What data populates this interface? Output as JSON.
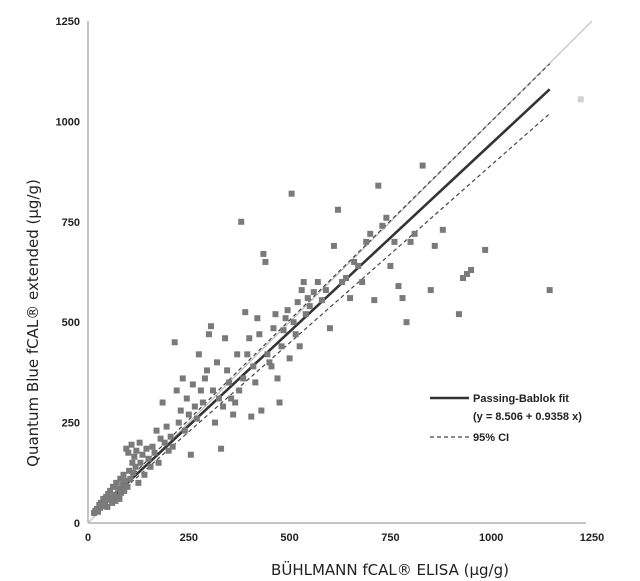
{
  "chart_data": {
    "type": "scatter",
    "xlabel": "BÜHLMANN fCAL® ELISA (μg/g)",
    "ylabel": "Quantum Blue fCAL® extended (μg/g)",
    "xlim": [
      0,
      1250
    ],
    "ylim": [
      0,
      1250
    ],
    "xticks": [
      "0",
      "250",
      "500",
      "750",
      "1000",
      "1250"
    ],
    "yticks": [
      "0",
      "250",
      "500",
      "750",
      "1000",
      "1250"
    ],
    "grid": false,
    "legend_position": "right",
    "colors": {
      "points": "#7a7a7a",
      "fit": "#333333",
      "ci": "#444444",
      "identity": "#bdbdbd",
      "outlier": "#d0d0d0"
    },
    "fit": {
      "label": "Passing-Bablok fit",
      "equation": "(y = 8.506 + 0.9358 x)",
      "intercept": 8.506,
      "slope": 0.9358,
      "x_range": [
        15,
        1145
      ]
    },
    "ci": {
      "label": "95% CI",
      "upper": {
        "intercept": 10,
        "slope": 0.99
      },
      "lower": {
        "intercept": 6,
        "slope": 0.885
      }
    },
    "identity_line": {
      "x_range": [
        0,
        1250
      ]
    },
    "outlier": [
      1222,
      1055
    ],
    "points": [
      [
        15,
        25
      ],
      [
        18,
        30
      ],
      [
        22,
        35
      ],
      [
        25,
        28
      ],
      [
        28,
        45
      ],
      [
        30,
        38
      ],
      [
        32,
        50
      ],
      [
        35,
        42
      ],
      [
        38,
        60
      ],
      [
        40,
        55
      ],
      [
        42,
        48
      ],
      [
        45,
        65
      ],
      [
        48,
        40
      ],
      [
        50,
        72
      ],
      [
        52,
        58
      ],
      [
        55,
        80
      ],
      [
        58,
        62
      ],
      [
        60,
        50
      ],
      [
        62,
        90
      ],
      [
        65,
        70
      ],
      [
        68,
        55
      ],
      [
        70,
        100
      ],
      [
        72,
        65
      ],
      [
        75,
        85
      ],
      [
        78,
        60
      ],
      [
        80,
        110
      ],
      [
        82,
        75
      ],
      [
        85,
        95
      ],
      [
        88,
        120
      ],
      [
        90,
        80
      ],
      [
        92,
        105
      ],
      [
        95,
        185
      ],
      [
        98,
        90
      ],
      [
        100,
        175
      ],
      [
        102,
        130
      ],
      [
        105,
        110
      ],
      [
        108,
        195
      ],
      [
        110,
        150
      ],
      [
        112,
        125
      ],
      [
        115,
        165
      ],
      [
        118,
        140
      ],
      [
        120,
        180
      ],
      [
        125,
        100
      ],
      [
        128,
        200
      ],
      [
        130,
        150
      ],
      [
        135,
        170
      ],
      [
        140,
        120
      ],
      [
        145,
        185
      ],
      [
        150,
        160
      ],
      [
        155,
        140
      ],
      [
        160,
        190
      ],
      [
        165,
        175
      ],
      [
        170,
        230
      ],
      [
        175,
        150
      ],
      [
        180,
        210
      ],
      [
        185,
        300
      ],
      [
        190,
        200
      ],
      [
        195,
        240
      ],
      [
        200,
        180
      ],
      [
        205,
        215
      ],
      [
        210,
        190
      ],
      [
        215,
        450
      ],
      [
        220,
        330
      ],
      [
        225,
        250
      ],
      [
        230,
        280
      ],
      [
        235,
        360
      ],
      [
        240,
        230
      ],
      [
        245,
        310
      ],
      [
        250,
        270
      ],
      [
        255,
        170
      ],
      [
        260,
        345
      ],
      [
        265,
        290
      ],
      [
        270,
        260
      ],
      [
        275,
        420
      ],
      [
        280,
        330
      ],
      [
        285,
        300
      ],
      [
        290,
        360
      ],
      [
        295,
        380
      ],
      [
        300,
        470
      ],
      [
        305,
        490
      ],
      [
        310,
        330
      ],
      [
        315,
        250
      ],
      [
        320,
        400
      ],
      [
        325,
        310
      ],
      [
        330,
        185
      ],
      [
        335,
        290
      ],
      [
        340,
        460
      ],
      [
        345,
        380
      ],
      [
        350,
        350
      ],
      [
        355,
        310
      ],
      [
        360,
        270
      ],
      [
        365,
        300
      ],
      [
        370,
        420
      ],
      [
        375,
        330
      ],
      [
        380,
        750
      ],
      [
        385,
        360
      ],
      [
        390,
        525
      ],
      [
        395,
        420
      ],
      [
        400,
        460
      ],
      [
        405,
        265
      ],
      [
        410,
        390
      ],
      [
        415,
        350
      ],
      [
        420,
        510
      ],
      [
        425,
        470
      ],
      [
        430,
        280
      ],
      [
        435,
        670
      ],
      [
        440,
        650
      ],
      [
        445,
        420
      ],
      [
        450,
        400
      ],
      [
        455,
        390
      ],
      [
        460,
        485
      ],
      [
        465,
        520
      ],
      [
        470,
        360
      ],
      [
        475,
        300
      ],
      [
        480,
        440
      ],
      [
        485,
        480
      ],
      [
        490,
        510
      ],
      [
        495,
        530
      ],
      [
        500,
        410
      ],
      [
        505,
        820
      ],
      [
        510,
        500
      ],
      [
        515,
        470
      ],
      [
        520,
        550
      ],
      [
        525,
        440
      ],
      [
        530,
        580
      ],
      [
        535,
        600
      ],
      [
        540,
        520
      ],
      [
        545,
        560
      ],
      [
        550,
        540
      ],
      [
        560,
        575
      ],
      [
        570,
        600
      ],
      [
        580,
        555
      ],
      [
        590,
        580
      ],
      [
        600,
        485
      ],
      [
        610,
        690
      ],
      [
        620,
        780
      ],
      [
        630,
        600
      ],
      [
        640,
        610
      ],
      [
        650,
        560
      ],
      [
        660,
        650
      ],
      [
        670,
        640
      ],
      [
        680,
        600
      ],
      [
        690,
        700
      ],
      [
        700,
        720
      ],
      [
        710,
        555
      ],
      [
        720,
        840
      ],
      [
        730,
        740
      ],
      [
        740,
        760
      ],
      [
        750,
        640
      ],
      [
        760,
        700
      ],
      [
        770,
        590
      ],
      [
        780,
        560
      ],
      [
        790,
        500
      ],
      [
        800,
        700
      ],
      [
        810,
        720
      ],
      [
        830,
        890
      ],
      [
        850,
        580
      ],
      [
        860,
        690
      ],
      [
        880,
        730
      ],
      [
        920,
        520
      ],
      [
        930,
        610
      ],
      [
        940,
        620
      ],
      [
        950,
        630
      ],
      [
        985,
        680
      ],
      [
        1145,
        580
      ]
    ]
  }
}
